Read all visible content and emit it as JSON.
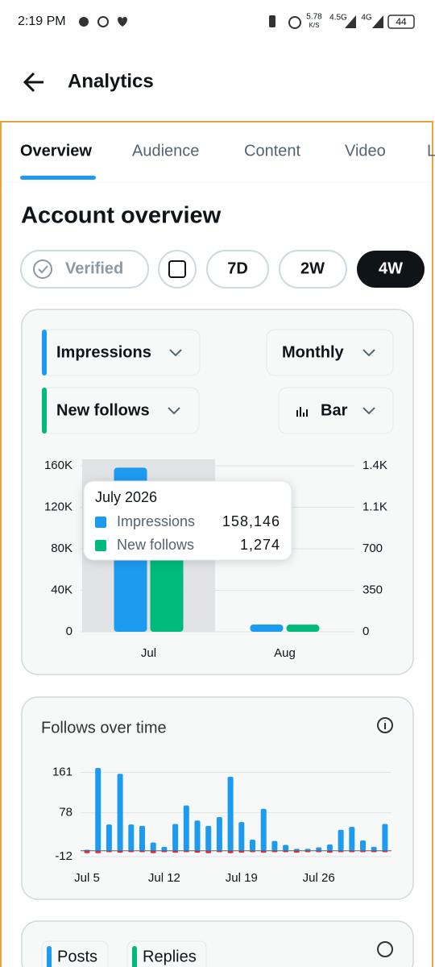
{
  "status_bar": {
    "time": "2:19 PM",
    "speed": "5.78",
    "speed_unit": "K/S",
    "network1": "4.5G",
    "network2": "4G",
    "battery": "44"
  },
  "header": {
    "title": "Analytics"
  },
  "tabs": [
    "Overview",
    "Audience",
    "Content",
    "Video",
    "L"
  ],
  "section_title": "Account overview",
  "filters": {
    "verified": "Verified",
    "ranges": [
      "7D",
      "2W",
      "4W"
    ]
  },
  "controls": {
    "metric1": "Impressions",
    "metric2": "New follows",
    "period": "Monthly",
    "chart_style": "Bar"
  },
  "chart_data": [
    {
      "type": "bar",
      "categories": [
        "Jul",
        "Aug"
      ],
      "series": [
        {
          "name": "Impressions",
          "color": "#1d9bf0",
          "values": [
            158146,
            7000
          ],
          "value_labels": [
            "158,146",
            null
          ]
        },
        {
          "name": "New follows",
          "color": "#00ba7c",
          "axis": "y2",
          "values": [
            1274,
            60
          ],
          "value_labels": [
            "1,274",
            null
          ]
        }
      ],
      "ylim": [
        0,
        160000
      ],
      "yticks": [
        0,
        {
          "value": 40000,
          "label": "40K"
        },
        {
          "value": 80000,
          "label": "80K"
        },
        {
          "value": 120000,
          "label": "120K"
        },
        {
          "value": 160000,
          "label": "160K"
        }
      ],
      "y2lim": [
        0,
        1400
      ],
      "y2ticks": [
        0,
        350,
        700,
        {
          "value": 1050,
          "label": "1.1K"
        },
        {
          "value": 1400,
          "label": "1.4K"
        }
      ],
      "grid": true,
      "highlight": 0,
      "tooltip_title": "July 2026"
    },
    {
      "type": "bar",
      "title": "Follows over time",
      "categories": [
        "Jul 5",
        null,
        null,
        null,
        null,
        null,
        null,
        "Jul 12",
        null,
        null,
        null,
        null,
        null,
        null,
        "Jul 19",
        null,
        null,
        null,
        null,
        null,
        null,
        "Jul 26",
        null,
        null,
        null,
        null,
        null,
        null
      ],
      "series": [
        {
          "color": "#1d9bf0",
          "values": [
            2,
            170,
            54,
            158,
            54,
            51,
            17,
            8,
            55,
            93,
            62,
            51,
            69,
            152,
            59,
            23,
            86,
            20,
            12,
            4,
            4,
            7,
            13,
            43,
            49,
            21,
            8,
            55
          ]
        },
        {
          "color": "#f4212e",
          "values": [
            -5,
            -5,
            -3,
            -4,
            -3,
            -3,
            -5,
            -3,
            -4,
            -3,
            -4,
            -5,
            -3,
            -5,
            -4,
            -3,
            -4,
            -3,
            -3,
            -4,
            -3,
            -3,
            -4,
            -3,
            -3,
            -3,
            -3,
            -3
          ]
        }
      ],
      "ylim": [
        -12,
        175
      ],
      "yticks": [
        -12,
        78,
        161
      ],
      "grid": true
    }
  ],
  "bottom_card": {
    "chips": [
      "Posts",
      "Replies"
    ]
  }
}
